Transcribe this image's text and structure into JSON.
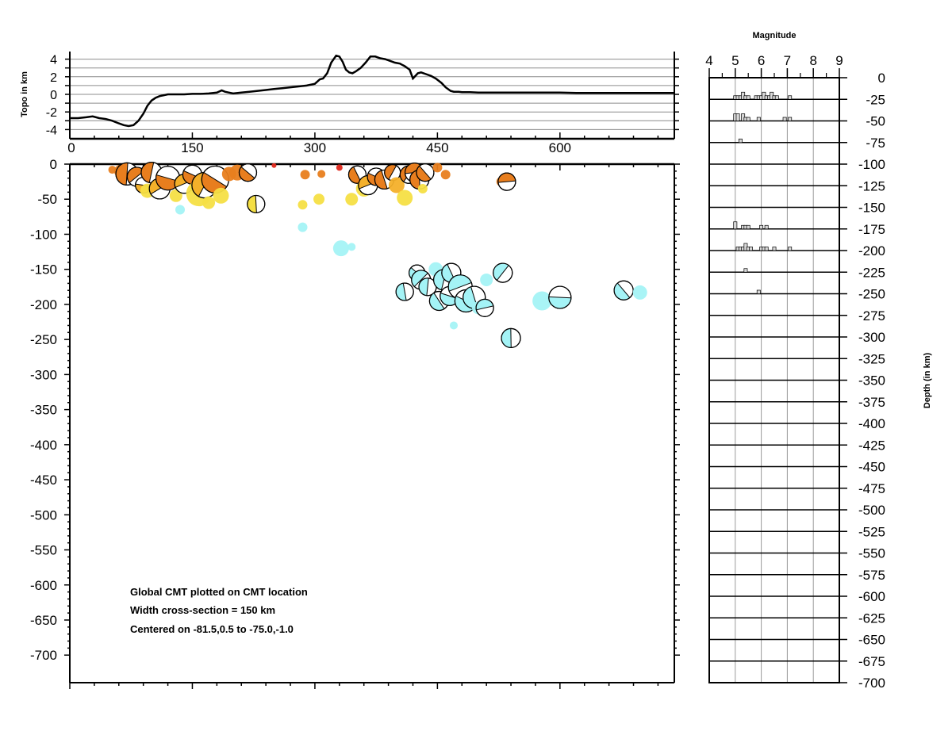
{
  "chart_data": [
    {
      "type": "line",
      "panel": "topography",
      "ylabel": "Topo in km",
      "x_ticks": [
        "0",
        "150",
        "300",
        "450",
        "600"
      ],
      "y_ticks": [
        "4",
        "2",
        "0",
        "-2",
        "-4"
      ],
      "xlim": [
        0,
        740
      ],
      "ylim": [
        -4,
        4
      ],
      "grid": true,
      "x": [
        0,
        10,
        20,
        28,
        36,
        44,
        52,
        60,
        66,
        72,
        78,
        84,
        90,
        95,
        100,
        105,
        110,
        115,
        120,
        130,
        140,
        150,
        160,
        170,
        180,
        186,
        190,
        195,
        200,
        210,
        220,
        230,
        240,
        250,
        260,
        270,
        280,
        290,
        300,
        306,
        310,
        315,
        320,
        326,
        330,
        334,
        338,
        342,
        346,
        350,
        356,
        362,
        368,
        374,
        380,
        386,
        392,
        398,
        404,
        410,
        416,
        420,
        426,
        430,
        436,
        442,
        448,
        455,
        460,
        466,
        470,
        476,
        480,
        490,
        500,
        520,
        540,
        560,
        580,
        600,
        620,
        640,
        660,
        680,
        700,
        720,
        740
      ],
      "y": [
        -2.7,
        -2.7,
        -2.6,
        -2.5,
        -2.7,
        -2.8,
        -3.0,
        -3.3,
        -3.5,
        -3.6,
        -3.5,
        -3.0,
        -2.2,
        -1.3,
        -0.7,
        -0.4,
        -0.2,
        -0.1,
        0.0,
        0.0,
        0.0,
        0.05,
        0.05,
        0.1,
        0.2,
        0.45,
        0.3,
        0.2,
        0.1,
        0.2,
        0.3,
        0.4,
        0.5,
        0.6,
        0.7,
        0.8,
        0.9,
        1.0,
        1.2,
        1.7,
        1.8,
        2.4,
        3.6,
        4.4,
        4.3,
        3.7,
        2.8,
        2.5,
        2.4,
        2.6,
        3.0,
        3.6,
        4.3,
        4.3,
        4.1,
        4.0,
        3.8,
        3.6,
        3.5,
        3.2,
        2.8,
        1.8,
        2.4,
        2.5,
        2.3,
        2.1,
        1.8,
        1.3,
        0.8,
        0.4,
        0.3,
        0.3,
        0.25,
        0.25,
        0.2,
        0.2,
        0.2,
        0.2,
        0.2,
        0.2,
        0.15,
        0.15,
        0.15,
        0.15,
        0.15,
        0.15,
        0.15
      ],
      "color": "#000000"
    },
    {
      "type": "scatter",
      "panel": "cross-section",
      "x_ticks": [
        "0",
        "150",
        "300",
        "450",
        "600"
      ],
      "y_ticks": [
        "0",
        "-50",
        "-100",
        "-150",
        "-200",
        "-250",
        "-300",
        "-350",
        "-400",
        "-450",
        "-500",
        "-550",
        "-600",
        "-650",
        "-700"
      ],
      "xlim": [
        0,
        740
      ],
      "ylim": [
        -740,
        0
      ],
      "annotation_lines": [
        "Global CMT plotted on CMT location",
        "Width cross-section = 150 km",
        "Centered on -81.5,0.5 to -75.0,-1.0"
      ],
      "colors": {
        "red": "#e0281c",
        "orange": "#e87e1e",
        "light-orange": "#f4b02a",
        "yellow": "#f5df44",
        "cyan": "#a4f3f6"
      },
      "points": [
        {
          "x": 52,
          "d": -8,
          "r": 5,
          "c": "orange",
          "b": false
        },
        {
          "x": 62,
          "d": -10,
          "r": 8,
          "c": "orange",
          "b": false
        },
        {
          "x": 70,
          "d": -14,
          "r": 14,
          "c": "orange",
          "b": true
        },
        {
          "x": 82,
          "d": -18,
          "r": 12,
          "c": "orange",
          "b": true
        },
        {
          "x": 90,
          "d": -30,
          "r": 10,
          "c": "light-orange",
          "b": true
        },
        {
          "x": 95,
          "d": -38,
          "r": 9,
          "c": "yellow",
          "b": false
        },
        {
          "x": 100,
          "d": -12,
          "r": 13,
          "c": "orange",
          "b": true
        },
        {
          "x": 110,
          "d": -35,
          "r": 13,
          "c": "light-orange",
          "b": true
        },
        {
          "x": 120,
          "d": -20,
          "r": 15,
          "c": "orange",
          "b": true
        },
        {
          "x": 130,
          "d": -45,
          "r": 8,
          "c": "yellow",
          "b": false
        },
        {
          "x": 135,
          "d": -65,
          "r": 6,
          "c": "cyan",
          "b": false
        },
        {
          "x": 140,
          "d": -28,
          "r": 12,
          "c": "light-orange",
          "b": true
        },
        {
          "x": 150,
          "d": -15,
          "r": 12,
          "c": "orange",
          "b": true
        },
        {
          "x": 158,
          "d": -42,
          "r": 16,
          "c": "yellow",
          "b": false
        },
        {
          "x": 165,
          "d": -30,
          "r": 16,
          "c": "light-orange",
          "b": true
        },
        {
          "x": 170,
          "d": -55,
          "r": 8,
          "c": "yellow",
          "b": false
        },
        {
          "x": 178,
          "d": -22,
          "r": 17,
          "c": "orange",
          "b": true
        },
        {
          "x": 185,
          "d": -45,
          "r": 10,
          "c": "yellow",
          "b": false
        },
        {
          "x": 195,
          "d": -14,
          "r": 9,
          "c": "orange",
          "b": false
        },
        {
          "x": 205,
          "d": -12,
          "r": 10,
          "c": "orange",
          "b": false
        },
        {
          "x": 218,
          "d": -12,
          "r": 11,
          "c": "orange",
          "b": true
        },
        {
          "x": 228,
          "d": -57,
          "r": 11,
          "c": "yellow",
          "b": true
        },
        {
          "x": 250,
          "d": -2,
          "r": 3,
          "c": "red",
          "b": false
        },
        {
          "x": 285,
          "d": -58,
          "r": 6,
          "c": "yellow",
          "b": false
        },
        {
          "x": 285,
          "d": -90,
          "r": 6,
          "c": "cyan",
          "b": false
        },
        {
          "x": 288,
          "d": -15,
          "r": 6,
          "c": "orange",
          "b": false
        },
        {
          "x": 305,
          "d": -50,
          "r": 7,
          "c": "yellow",
          "b": false
        },
        {
          "x": 308,
          "d": -14,
          "r": 5,
          "c": "orange",
          "b": false
        },
        {
          "x": 330,
          "d": -5,
          "r": 4,
          "c": "red",
          "b": false
        },
        {
          "x": 332,
          "d": -120,
          "r": 10,
          "c": "cyan",
          "b": false
        },
        {
          "x": 345,
          "d": -50,
          "r": 8,
          "c": "yellow",
          "b": false
        },
        {
          "x": 345,
          "d": -118,
          "r": 5,
          "c": "cyan",
          "b": false
        },
        {
          "x": 352,
          "d": -15,
          "r": 11,
          "c": "orange",
          "b": true
        },
        {
          "x": 360,
          "d": -35,
          "r": 10,
          "c": "yellow",
          "b": false
        },
        {
          "x": 365,
          "d": -30,
          "r": 12,
          "c": "light-orange",
          "b": true
        },
        {
          "x": 375,
          "d": -18,
          "r": 11,
          "c": "orange",
          "b": true
        },
        {
          "x": 385,
          "d": -22,
          "r": 12,
          "c": "orange",
          "b": true
        },
        {
          "x": 395,
          "d": -12,
          "r": 10,
          "c": "orange",
          "b": true
        },
        {
          "x": 400,
          "d": -30,
          "r": 10,
          "c": "light-orange",
          "b": false
        },
        {
          "x": 410,
          "d": -48,
          "r": 10,
          "c": "yellow",
          "b": false
        },
        {
          "x": 410,
          "d": -182,
          "r": 11,
          "c": "cyan",
          "b": true
        },
        {
          "x": 415,
          "d": -15,
          "r": 11,
          "c": "orange",
          "b": true
        },
        {
          "x": 422,
          "d": -12,
          "r": 12,
          "c": "orange",
          "b": true
        },
        {
          "x": 425,
          "d": -155,
          "r": 10,
          "c": "cyan",
          "b": true
        },
        {
          "x": 428,
          "d": -22,
          "r": 12,
          "c": "orange",
          "b": true
        },
        {
          "x": 430,
          "d": -165,
          "r": 12,
          "c": "cyan",
          "b": true
        },
        {
          "x": 432,
          "d": -35,
          "r": 6,
          "c": "yellow",
          "b": false
        },
        {
          "x": 435,
          "d": -12,
          "r": 11,
          "c": "orange",
          "b": true
        },
        {
          "x": 438,
          "d": -175,
          "r": 11,
          "c": "cyan",
          "b": true
        },
        {
          "x": 448,
          "d": -150,
          "r": 9,
          "c": "cyan",
          "b": false
        },
        {
          "x": 450,
          "d": -5,
          "r": 6,
          "c": "orange",
          "b": false
        },
        {
          "x": 452,
          "d": -195,
          "r": 12,
          "c": "cyan",
          "b": true
        },
        {
          "x": 458,
          "d": -165,
          "r": 13,
          "c": "cyan",
          "b": true
        },
        {
          "x": 460,
          "d": -15,
          "r": 6,
          "c": "orange",
          "b": false
        },
        {
          "x": 465,
          "d": -188,
          "r": 12,
          "c": "cyan",
          "b": true
        },
        {
          "x": 467,
          "d": -155,
          "r": 12,
          "c": "cyan",
          "b": true
        },
        {
          "x": 470,
          "d": -230,
          "r": 5,
          "c": "cyan",
          "b": false
        },
        {
          "x": 478,
          "d": -175,
          "r": 15,
          "c": "cyan",
          "b": true
        },
        {
          "x": 485,
          "d": -195,
          "r": 14,
          "c": "cyan",
          "b": true
        },
        {
          "x": 495,
          "d": -190,
          "r": 14,
          "c": "cyan",
          "b": true
        },
        {
          "x": 500,
          "d": -205,
          "r": 8,
          "c": "cyan",
          "b": false
        },
        {
          "x": 508,
          "d": -205,
          "r": 11,
          "c": "cyan",
          "b": true
        },
        {
          "x": 510,
          "d": -165,
          "r": 8,
          "c": "cyan",
          "b": false
        },
        {
          "x": 528,
          "d": -25,
          "r": 6,
          "c": "orange",
          "b": false
        },
        {
          "x": 530,
          "d": -155,
          "r": 12,
          "c": "cyan",
          "b": true
        },
        {
          "x": 535,
          "d": -25,
          "r": 11,
          "c": "orange",
          "b": true
        },
        {
          "x": 535,
          "d": -248,
          "r": 7,
          "c": "cyan",
          "b": false
        },
        {
          "x": 540,
          "d": -248,
          "r": 12,
          "c": "cyan",
          "b": true
        },
        {
          "x": 578,
          "d": -195,
          "r": 12,
          "c": "cyan",
          "b": false
        },
        {
          "x": 600,
          "d": -190,
          "r": 14,
          "c": "cyan",
          "b": true
        },
        {
          "x": 678,
          "d": -180,
          "r": 12,
          "c": "cyan",
          "b": true
        },
        {
          "x": 698,
          "d": -183,
          "r": 9,
          "c": "cyan",
          "b": false
        }
      ]
    },
    {
      "type": "bar",
      "panel": "magnitude-histogram",
      "title": "Magnitude",
      "ylabel": "Depth (in km)",
      "x_ticks": [
        "4",
        "5",
        "6",
        "7",
        "8",
        "9"
      ],
      "y_ticks": [
        "0",
        "-25",
        "-50",
        "-75",
        "-100",
        "-125",
        "-150",
        "-175",
        "-200",
        "-225",
        "-250",
        "-275",
        "-300",
        "-325",
        "-350",
        "-375",
        "-400",
        "-425",
        "-450",
        "-475",
        "-500",
        "-525",
        "-550",
        "-575",
        "-600",
        "-625",
        "-650",
        "-675",
        "-700"
      ],
      "xlim": [
        4,
        9
      ],
      "ylim": [
        -700,
        0
      ],
      "grid": true,
      "bins": [
        {
          "depth": -25,
          "mag": [
            5.0,
            5.1,
            5.2,
            5.3,
            5.4,
            5.5,
            5.8,
            5.9,
            6.0,
            6.1,
            6.2,
            6.3,
            6.4,
            6.5,
            6.6,
            7.1
          ],
          "h": [
            1,
            1,
            1,
            2,
            1,
            1,
            1,
            1,
            1,
            2,
            1,
            1,
            2,
            1,
            1,
            1
          ]
        },
        {
          "depth": -50,
          "mag": [
            5.0,
            5.1,
            5.3,
            5.4,
            5.5,
            5.9,
            6.9,
            7.1
          ],
          "h": [
            2,
            2,
            2,
            1,
            1,
            1,
            1,
            1
          ]
        },
        {
          "depth": -75,
          "mag": [
            5.2
          ],
          "h": [
            1
          ]
        },
        {
          "depth": -175,
          "mag": [
            5.0,
            5.3,
            5.4,
            5.5,
            6.0,
            6.2
          ],
          "h": [
            2,
            1,
            1,
            1,
            1,
            1
          ]
        },
        {
          "depth": -200,
          "mag": [
            5.1,
            5.2,
            5.3,
            5.4,
            5.5,
            5.6,
            6.0,
            6.1,
            6.2,
            6.5,
            7.1
          ],
          "h": [
            1,
            1,
            1,
            2,
            1,
            1,
            1,
            1,
            1,
            1,
            1
          ]
        },
        {
          "depth": -225,
          "mag": [
            5.4
          ],
          "h": [
            1
          ]
        },
        {
          "depth": -250,
          "mag": [
            5.9
          ],
          "h": [
            1
          ]
        }
      ]
    }
  ]
}
